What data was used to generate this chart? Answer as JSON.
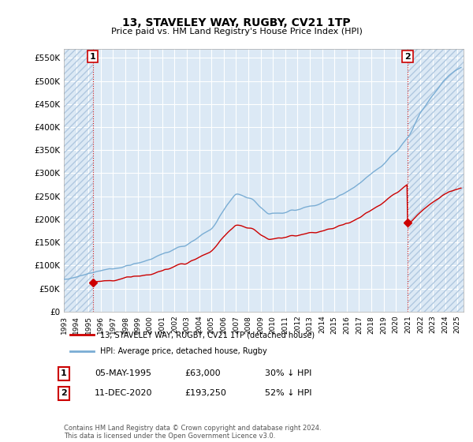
{
  "title": "13, STAVELEY WAY, RUGBY, CV21 1TP",
  "subtitle": "Price paid vs. HM Land Registry's House Price Index (HPI)",
  "ylabel_ticks": [
    "£0",
    "£50K",
    "£100K",
    "£150K",
    "£200K",
    "£250K",
    "£300K",
    "£350K",
    "£400K",
    "£450K",
    "£500K",
    "£550K"
  ],
  "ytick_values": [
    0,
    50000,
    100000,
    150000,
    200000,
    250000,
    300000,
    350000,
    400000,
    450000,
    500000,
    550000
  ],
  "ylim": [
    0,
    570000
  ],
  "xlim_start": 1993.0,
  "xlim_end": 2025.5,
  "xtick_years": [
    1993,
    1994,
    1995,
    1996,
    1997,
    1998,
    1999,
    2000,
    2001,
    2002,
    2003,
    2004,
    2005,
    2006,
    2007,
    2008,
    2009,
    2010,
    2011,
    2012,
    2013,
    2014,
    2015,
    2016,
    2017,
    2018,
    2019,
    2020,
    2021,
    2022,
    2023,
    2024,
    2025
  ],
  "hpi_color": "#7aadd4",
  "price_color": "#cc0000",
  "background_color": "#dce9f5",
  "grid_color": "#ffffff",
  "hatch_color": "#c8d8e8",
  "legend_label_price": "13, STAVELEY WAY, RUGBY, CV21 1TP (detached house)",
  "legend_label_hpi": "HPI: Average price, detached house, Rugby",
  "marker1_label": "1",
  "marker1_date": "05-MAY-1995",
  "marker1_price": "£63,000",
  "marker1_hpi": "30% ↓ HPI",
  "marker1_year": 1995.35,
  "marker1_value": 63000,
  "marker2_label": "2",
  "marker2_date": "11-DEC-2020",
  "marker2_price": "£193,250",
  "marker2_hpi": "52% ↓ HPI",
  "marker2_year": 2020.94,
  "marker2_value": 193250,
  "footer": "Contains HM Land Registry data © Crown copyright and database right 2024.\nThis data is licensed under the Open Government Licence v3.0."
}
